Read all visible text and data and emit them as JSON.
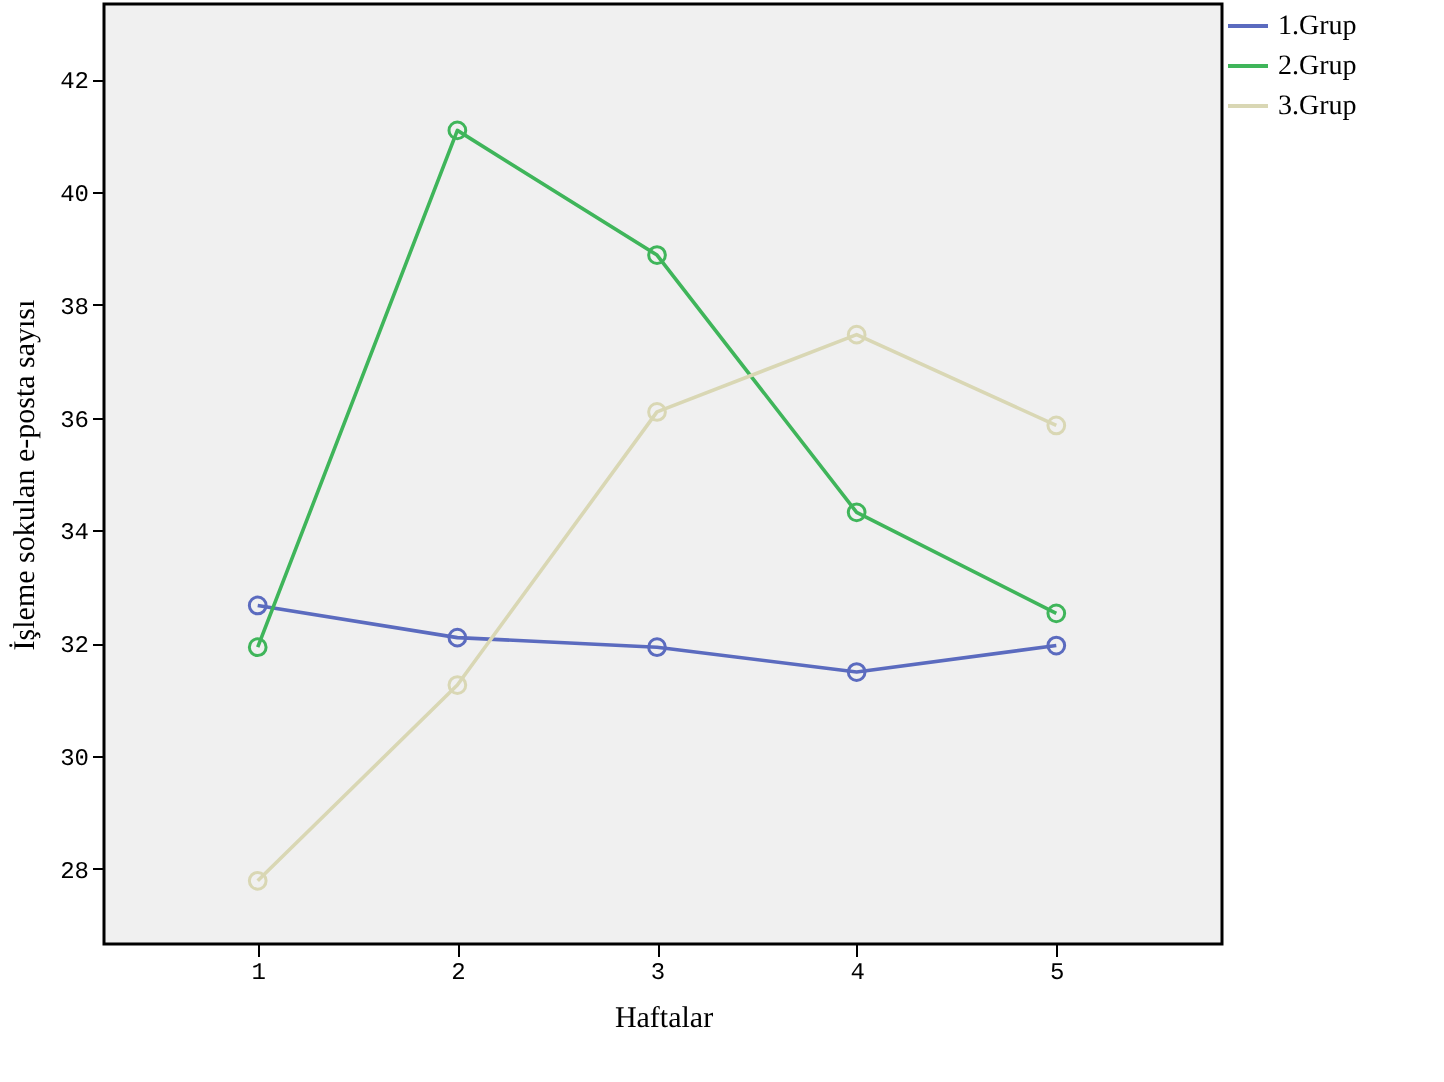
{
  "chart_data": {
    "type": "line",
    "xlabel": "Haftalar",
    "ylabel": "İşleme sokulan e-posta sayısı",
    "x": [
      1,
      2,
      3,
      4,
      5
    ],
    "xlim": [
      0.23,
      5.83
    ],
    "xticks": [
      1,
      2,
      3,
      4,
      5
    ],
    "ylim": [
      26.67,
      43.33
    ],
    "yticks": [
      28,
      30,
      32,
      34,
      36,
      38,
      40,
      42
    ],
    "series": [
      {
        "name": "1.Grup",
        "color": "#5b6bbf",
        "values": [
          32.67,
          32.1,
          31.93,
          31.49,
          31.96
        ]
      },
      {
        "name": "2.Grup",
        "color": "#3fb55a",
        "values": [
          31.93,
          41.09,
          38.88,
          34.32,
          32.53
        ]
      },
      {
        "name": "3.Grup",
        "color": "#d9d7b4",
        "values": [
          27.79,
          31.26,
          36.1,
          37.47,
          35.86
        ]
      }
    ],
    "marker": "circle",
    "line_style": "solid",
    "grid": false,
    "legend": "top right"
  }
}
